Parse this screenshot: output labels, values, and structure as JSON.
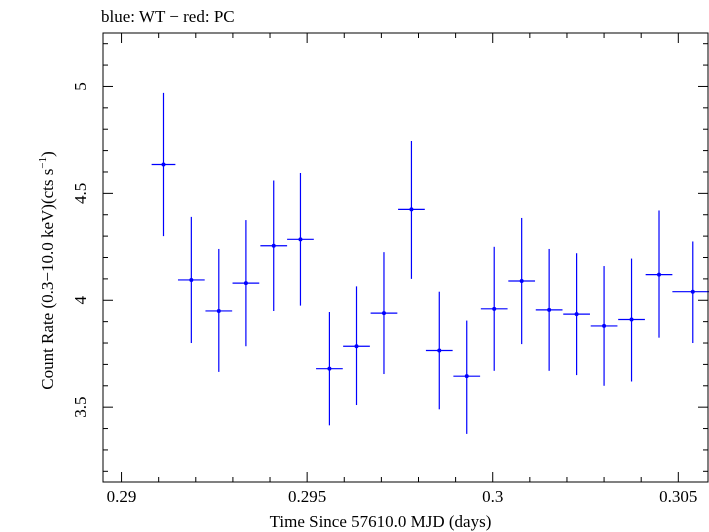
{
  "chart_data": {
    "type": "scatter",
    "title": "blue: WT − red: PC",
    "xlabel": "Time Since 57610.0 MJD (days)",
    "ylabel_main": "Count Rate (0.3−10.0 keV)(cts s",
    "ylabel_sup": "−1",
    "ylabel_tail": ")",
    "xlim": [
      0.2895,
      0.3058
    ],
    "ylim": [
      3.15,
      5.25
    ],
    "xticks_major": [
      {
        "v": 0.29,
        "label": "0.29"
      },
      {
        "v": 0.295,
        "label": "0.295"
      },
      {
        "v": 0.3,
        "label": "0.3"
      },
      {
        "v": 0.305,
        "label": "0.305"
      }
    ],
    "xticks_minor_step": 0.001,
    "yticks_major": [
      {
        "v": 3.5,
        "label": "3.5"
      },
      {
        "v": 4,
        "label": "4"
      },
      {
        "v": 4.5,
        "label": "4.5"
      },
      {
        "v": 5,
        "label": "5"
      }
    ],
    "yticks_minor_step": 0.1,
    "grid": false,
    "series": [
      {
        "color": "#0000ff",
        "points": [
          {
            "x": 0.29113,
            "xerr": 0.00032,
            "y": 4.635,
            "ylo": 4.3,
            "yhi": 4.97
          },
          {
            "x": 0.29188,
            "xerr": 0.00036,
            "y": 4.095,
            "ylo": 3.8,
            "yhi": 4.39
          },
          {
            "x": 0.29262,
            "xerr": 0.00036,
            "y": 3.95,
            "ylo": 3.665,
            "yhi": 4.24
          },
          {
            "x": 0.29335,
            "xerr": 0.00036,
            "y": 4.08,
            "ylo": 3.785,
            "yhi": 4.375
          },
          {
            "x": 0.2941,
            "xerr": 0.00036,
            "y": 4.255,
            "ylo": 3.95,
            "yhi": 4.56
          },
          {
            "x": 0.29482,
            "xerr": 0.00036,
            "y": 4.285,
            "ylo": 3.975,
            "yhi": 4.595
          },
          {
            "x": 0.2956,
            "xerr": 0.00036,
            "y": 3.68,
            "ylo": 3.415,
            "yhi": 3.945
          },
          {
            "x": 0.29633,
            "xerr": 0.00036,
            "y": 3.785,
            "ylo": 3.51,
            "yhi": 4.065
          },
          {
            "x": 0.29707,
            "xerr": 0.00036,
            "y": 3.94,
            "ylo": 3.655,
            "yhi": 4.225
          },
          {
            "x": 0.29781,
            "xerr": 0.00036,
            "y": 4.425,
            "ylo": 4.1,
            "yhi": 4.745
          },
          {
            "x": 0.29856,
            "xerr": 0.00036,
            "y": 3.765,
            "ylo": 3.49,
            "yhi": 4.04
          },
          {
            "x": 0.2993,
            "xerr": 0.00036,
            "y": 3.645,
            "ylo": 3.375,
            "yhi": 3.905
          },
          {
            "x": 0.30004,
            "xerr": 0.00036,
            "y": 3.96,
            "ylo": 3.67,
            "yhi": 4.25
          },
          {
            "x": 0.30078,
            "xerr": 0.00036,
            "y": 4.09,
            "ylo": 3.795,
            "yhi": 4.385
          },
          {
            "x": 0.30152,
            "xerr": 0.00036,
            "y": 3.955,
            "ylo": 3.67,
            "yhi": 4.24
          },
          {
            "x": 0.30226,
            "xerr": 0.00036,
            "y": 3.935,
            "ylo": 3.65,
            "yhi": 4.22
          },
          {
            "x": 0.303,
            "xerr": 0.00036,
            "y": 3.88,
            "ylo": 3.6,
            "yhi": 4.16
          },
          {
            "x": 0.30374,
            "xerr": 0.00036,
            "y": 3.91,
            "ylo": 3.62,
            "yhi": 4.195
          },
          {
            "x": 0.30448,
            "xerr": 0.00036,
            "y": 4.12,
            "ylo": 3.825,
            "yhi": 4.42
          },
          {
            "x": 0.30539,
            "xerr": 0.00055,
            "y": 4.04,
            "ylo": 3.8,
            "yhi": 4.275
          }
        ]
      }
    ]
  }
}
